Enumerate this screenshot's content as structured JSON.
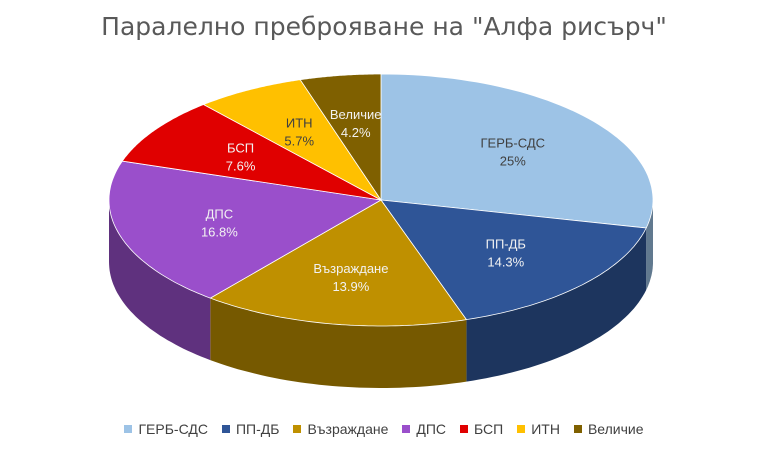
{
  "chart_data": {
    "type": "pie",
    "title": "Паралелно преброяване на \"Алфа рисърч\"",
    "categories": [
      "ГЕРБ-СДС",
      "ПП-ДБ",
      "Възраждане",
      "ДПС",
      "БСП",
      "ИТН",
      "Величие"
    ],
    "values": [
      25,
      14.3,
      13.9,
      16.8,
      7.6,
      5.7,
      4.2
    ],
    "value_labels": [
      "25%",
      "14.3%",
      "13.9%",
      "16.8%",
      "7.6%",
      "5.7%",
      "4.2%"
    ],
    "colors": [
      "#9DC3E6",
      "#2F5597",
      "#BF9000",
      "#9A4FCB",
      "#E00000",
      "#FFC000",
      "#7F6000"
    ],
    "legend_position": "bottom",
    "style": "3d"
  }
}
